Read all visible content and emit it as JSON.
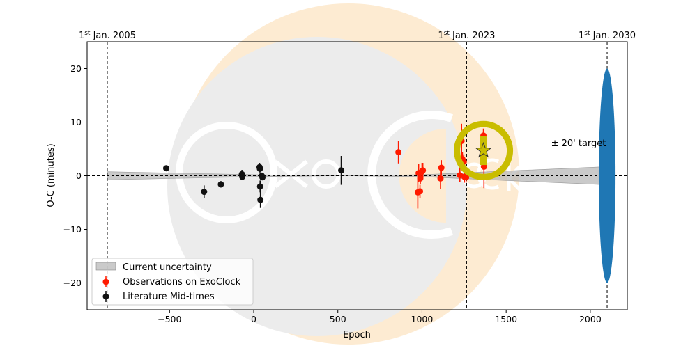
{
  "chart_data": {
    "type": "scatter",
    "title": "",
    "xlabel": "Epoch",
    "ylabel": "O-C (minutes)",
    "xlim": [
      -990,
      2220
    ],
    "ylim": [
      -25,
      25
    ],
    "xticks": [
      -500,
      0,
      500,
      1000,
      1500,
      2000
    ],
    "yticks": [
      -20,
      -10,
      0,
      10,
      20
    ],
    "grid": false,
    "legend_position": "lower-left",
    "series": [
      {
        "name": "Literature Mid-times",
        "color": "#111111",
        "points": [
          {
            "x": -520,
            "y": 1.4,
            "err": 0.5
          },
          {
            "x": -295,
            "y": -3.0,
            "err": 1.2
          },
          {
            "x": -195,
            "y": -1.6,
            "err": 0.6
          },
          {
            "x": -70,
            "y": 0.3,
            "err": 0.8
          },
          {
            "x": -68,
            "y": -0.2,
            "err": 0.6
          },
          {
            "x": 35,
            "y": 1.6,
            "err": 0.8
          },
          {
            "x": 37,
            "y": 1.3,
            "err": 0.7
          },
          {
            "x": 38,
            "y": -2.0,
            "err": 1.1
          },
          {
            "x": 40,
            "y": -4.5,
            "err": 1.5
          },
          {
            "x": 48,
            "y": 0.0,
            "err": 0.6
          },
          {
            "x": 52,
            "y": -0.3,
            "err": 0.5
          },
          {
            "x": 520,
            "y": 1.0,
            "err": 2.7
          }
        ]
      },
      {
        "name": "Observations on ExoClock",
        "color": "#ff1a00",
        "points": [
          {
            "x": 860,
            "y": 4.4,
            "err": 2.1
          },
          {
            "x": 975,
            "y": -3.1,
            "err": 3.0
          },
          {
            "x": 980,
            "y": 0.5,
            "err": 1.7
          },
          {
            "x": 988,
            "y": -2.9,
            "err": 1.2
          },
          {
            "x": 990,
            "y": -0.5,
            "err": 1.0
          },
          {
            "x": 1000,
            "y": 0.8,
            "err": 1.6
          },
          {
            "x": 1005,
            "y": 1.0,
            "err": 1.4
          },
          {
            "x": 1110,
            "y": -0.5,
            "err": 1.9
          },
          {
            "x": 1115,
            "y": 1.5,
            "err": 1.4
          },
          {
            "x": 1225,
            "y": 0.1,
            "err": 1.3
          },
          {
            "x": 1235,
            "y": 6.5,
            "err": 3.2
          },
          {
            "x": 1240,
            "y": 3.1,
            "err": 1.3
          },
          {
            "x": 1248,
            "y": 2.6,
            "err": 1.4
          },
          {
            "x": 1252,
            "y": -0.2,
            "err": 1.1
          },
          {
            "x": 1262,
            "y": -0.3,
            "err": 1.0
          },
          {
            "x": 1365,
            "y": 7.5,
            "err": 1.3
          },
          {
            "x": 1368,
            "y": 1.7,
            "err": 4.0
          }
        ]
      }
    ],
    "uncertainty_band": {
      "name": "Current uncertainty",
      "color": "#b3b3b3",
      "x": [
        -870,
        0,
        520,
        1000,
        2100
      ],
      "upper": [
        0.75,
        0.2,
        0.0,
        0.2,
        1.7
      ],
      "lower": [
        -0.75,
        -0.2,
        0.0,
        -0.2,
        -1.7
      ]
    },
    "prediction": {
      "x": 1365,
      "y": 4.7,
      "err": 2.7,
      "marker": "star",
      "ring_color": "#c9bd00"
    },
    "target_ellipse": {
      "x": 2100,
      "half_height": 20,
      "half_width_epoch": 50,
      "color": "#1f77b4"
    },
    "reference_lines": [
      {
        "epoch": -870,
        "sup": "st",
        "label_pre": "1",
        "label_post": " Jan. 2005"
      },
      {
        "epoch": 1265,
        "sup": "st",
        "label_pre": "1",
        "label_post": " Jan. 2023"
      },
      {
        "epoch": 2100,
        "sup": "st",
        "label_pre": "1",
        "label_post": " Jan. 2030"
      }
    ],
    "annotations": [
      {
        "x": 1930,
        "y": 5.5,
        "text": "± 20' target"
      }
    ],
    "legend": [
      {
        "kind": "band",
        "label": "Current uncertainty"
      },
      {
        "kind": "red-point",
        "label": "Observations on ExoClock"
      },
      {
        "kind": "black-point",
        "label": "Literature Mid-times"
      }
    ],
    "watermark": {
      "text": "ExoClock",
      "moon_color": "#fdebd2",
      "disk_color": "#ececec"
    }
  }
}
